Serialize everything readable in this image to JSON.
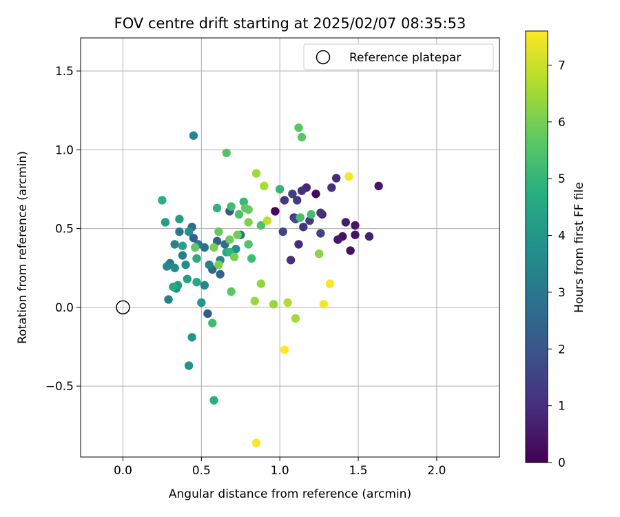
{
  "chart_data": {
    "type": "scatter",
    "title": "FOV centre drift starting at 2025/02/07 08:35:53",
    "xlabel": "Angular distance from reference (arcmin)",
    "ylabel": "Rotation from reference (arcmin)",
    "xlim": [
      -0.27,
      2.4
    ],
    "ylim": [
      -0.95,
      1.71
    ],
    "xticks": [
      0.0,
      0.5,
      1.0,
      1.5,
      2.0
    ],
    "xtick_labels": [
      "0.0",
      "0.5",
      "1.0",
      "1.5",
      "2.0"
    ],
    "yticks": [
      -0.5,
      0.0,
      0.5,
      1.0,
      1.5
    ],
    "ytick_labels": [
      "−0.5",
      "0.0",
      "0.5",
      "1.0",
      "1.5"
    ],
    "grid": true,
    "legend": {
      "placement": "top-right",
      "entries": [
        "Reference platepar"
      ]
    },
    "reference_point": {
      "x": 0.0,
      "y": 0.0,
      "marker": "open-circle",
      "color": "#000000"
    },
    "colorbar": {
      "label": "Hours from first FF file",
      "colormap": "viridis",
      "range": [
        0,
        7.6
      ],
      "ticks": [
        0,
        1,
        2,
        3,
        4,
        5,
        6,
        7
      ],
      "tick_labels": [
        "0",
        "1",
        "2",
        "3",
        "4",
        "5",
        "6",
        "7"
      ]
    },
    "points": [
      {
        "x": 0.97,
        "y": 0.61,
        "c": 0.1
      },
      {
        "x": 1.23,
        "y": 0.72,
        "c": 0.2
      },
      {
        "x": 1.4,
        "y": 0.45,
        "c": 0.3
      },
      {
        "x": 1.45,
        "y": 0.36,
        "c": 0.35
      },
      {
        "x": 1.48,
        "y": 0.46,
        "c": 0.4
      },
      {
        "x": 1.48,
        "y": 0.52,
        "c": 0.45
      },
      {
        "x": 1.37,
        "y": 0.43,
        "c": 0.5
      },
      {
        "x": 1.63,
        "y": 0.77,
        "c": 0.5
      },
      {
        "x": 1.42,
        "y": 0.54,
        "c": 0.6
      },
      {
        "x": 1.57,
        "y": 0.45,
        "c": 0.7
      },
      {
        "x": 1.17,
        "y": 0.76,
        "c": 0.8
      },
      {
        "x": 1.27,
        "y": 0.59,
        "c": 0.8
      },
      {
        "x": 1.36,
        "y": 0.82,
        "c": 0.9
      },
      {
        "x": 1.12,
        "y": 0.4,
        "c": 0.9
      },
      {
        "x": 1.07,
        "y": 0.3,
        "c": 1.0
      },
      {
        "x": 1.14,
        "y": 0.74,
        "c": 1.0
      },
      {
        "x": 1.33,
        "y": 0.76,
        "c": 1.0
      },
      {
        "x": 1.09,
        "y": 0.57,
        "c": 1.1
      },
      {
        "x": 1.15,
        "y": 0.51,
        "c": 1.1
      },
      {
        "x": 1.26,
        "y": 0.6,
        "c": 1.1
      },
      {
        "x": 1.03,
        "y": 0.68,
        "c": 1.2
      },
      {
        "x": 1.11,
        "y": 0.68,
        "c": 1.3
      },
      {
        "x": 1.19,
        "y": 0.55,
        "c": 1.3
      },
      {
        "x": 1.08,
        "y": 0.72,
        "c": 1.4
      },
      {
        "x": 1.26,
        "y": 0.47,
        "c": 1.5
      },
      {
        "x": 1.02,
        "y": 0.48,
        "c": 1.6
      },
      {
        "x": 1.1,
        "y": 0.56,
        "c": 1.7
      },
      {
        "x": 0.68,
        "y": 0.61,
        "c": 2.0
      },
      {
        "x": 0.54,
        "y": -0.04,
        "c": 2.2
      },
      {
        "x": 0.6,
        "y": 0.42,
        "c": 2.3
      },
      {
        "x": 0.45,
        "y": 0.44,
        "c": 2.3
      },
      {
        "x": 0.62,
        "y": 0.21,
        "c": 2.4
      },
      {
        "x": 0.57,
        "y": 0.24,
        "c": 2.5
      },
      {
        "x": 0.44,
        "y": 0.51,
        "c": 2.6
      },
      {
        "x": 0.65,
        "y": 0.4,
        "c": 2.7
      },
      {
        "x": 0.52,
        "y": 0.38,
        "c": 2.8
      },
      {
        "x": 0.75,
        "y": 0.46,
        "c": 2.9
      },
      {
        "x": 0.36,
        "y": 0.48,
        "c": 3.0
      },
      {
        "x": 0.48,
        "y": 0.4,
        "c": 3.0
      },
      {
        "x": 0.3,
        "y": 0.28,
        "c": 3.1
      },
      {
        "x": 0.38,
        "y": 0.33,
        "c": 3.2
      },
      {
        "x": 0.29,
        "y": 0.05,
        "c": 3.3
      },
      {
        "x": 0.55,
        "y": 0.27,
        "c": 3.3
      },
      {
        "x": 0.62,
        "y": 0.3,
        "c": 3.4
      },
      {
        "x": 0.33,
        "y": 0.4,
        "c": 3.4
      },
      {
        "x": 0.52,
        "y": 0.14,
        "c": 3.5
      },
      {
        "x": 0.45,
        "y": 1.09,
        "c": 3.5
      },
      {
        "x": 0.28,
        "y": 0.26,
        "c": 3.6
      },
      {
        "x": 0.34,
        "y": 0.12,
        "c": 3.6
      },
      {
        "x": 0.4,
        "y": 0.27,
        "c": 3.7
      },
      {
        "x": 0.33,
        "y": 0.25,
        "c": 3.7
      },
      {
        "x": 0.42,
        "y": 0.48,
        "c": 3.8
      },
      {
        "x": 0.72,
        "y": 0.37,
        "c": 3.8
      },
      {
        "x": 0.42,
        "y": -0.37,
        "c": 3.9
      },
      {
        "x": 0.44,
        "y": -0.19,
        "c": 4.0
      },
      {
        "x": 0.5,
        "y": 0.03,
        "c": 4.0
      },
      {
        "x": 0.35,
        "y": 0.14,
        "c": 4.1
      },
      {
        "x": 0.27,
        "y": 0.54,
        "c": 4.2
      },
      {
        "x": 0.36,
        "y": 0.56,
        "c": 4.2
      },
      {
        "x": 0.41,
        "y": 0.18,
        "c": 4.3
      },
      {
        "x": 0.38,
        "y": 0.39,
        "c": 4.4
      },
      {
        "x": 0.66,
        "y": 0.35,
        "c": 4.5
      },
      {
        "x": 0.47,
        "y": 0.16,
        "c": 4.5
      },
      {
        "x": 0.32,
        "y": 0.13,
        "c": 4.6
      },
      {
        "x": 0.47,
        "y": 0.31,
        "c": 4.7
      },
      {
        "x": 0.58,
        "y": -0.59,
        "c": 4.8
      },
      {
        "x": 0.25,
        "y": 0.68,
        "c": 4.8
      },
      {
        "x": 0.6,
        "y": 0.63,
        "c": 4.9
      },
      {
        "x": 0.68,
        "y": 0.35,
        "c": 5.0
      },
      {
        "x": 1.0,
        "y": 0.75,
        "c": 5.0
      },
      {
        "x": 0.77,
        "y": 0.67,
        "c": 5.1
      },
      {
        "x": 0.69,
        "y": 0.64,
        "c": 5.2
      },
      {
        "x": 0.82,
        "y": 0.31,
        "c": 5.2
      },
      {
        "x": 0.57,
        "y": -0.1,
        "c": 5.2
      },
      {
        "x": 1.13,
        "y": 0.57,
        "c": 5.3
      },
      {
        "x": 1.2,
        "y": 0.59,
        "c": 5.3
      },
      {
        "x": 0.88,
        "y": 0.52,
        "c": 5.4
      },
      {
        "x": 0.74,
        "y": 0.59,
        "c": 5.4
      },
      {
        "x": 0.8,
        "y": 0.4,
        "c": 5.5
      },
      {
        "x": 0.66,
        "y": 0.98,
        "c": 5.5
      },
      {
        "x": 0.69,
        "y": 0.1,
        "c": 5.6
      },
      {
        "x": 1.12,
        "y": 1.14,
        "c": 5.6
      },
      {
        "x": 1.14,
        "y": 1.08,
        "c": 5.6
      },
      {
        "x": 0.46,
        "y": 0.38,
        "c": 5.7
      },
      {
        "x": 0.78,
        "y": 0.63,
        "c": 5.7
      },
      {
        "x": 0.8,
        "y": 0.62,
        "c": 5.8
      },
      {
        "x": 0.61,
        "y": 0.48,
        "c": 5.8
      },
      {
        "x": 0.73,
        "y": 0.46,
        "c": 5.9
      },
      {
        "x": 0.68,
        "y": 0.43,
        "c": 5.9
      },
      {
        "x": 0.58,
        "y": 0.38,
        "c": 6.0
      },
      {
        "x": 0.71,
        "y": 0.32,
        "c": 6.0
      },
      {
        "x": 0.61,
        "y": 0.27,
        "c": 6.1
      },
      {
        "x": 0.8,
        "y": 0.54,
        "c": 6.1
      },
      {
        "x": 1.25,
        "y": 0.34,
        "c": 6.2
      },
      {
        "x": 0.88,
        "y": 0.15,
        "c": 6.3
      },
      {
        "x": 0.84,
        "y": 0.04,
        "c": 6.4
      },
      {
        "x": 0.96,
        "y": 0.02,
        "c": 6.4
      },
      {
        "x": 1.1,
        "y": -0.07,
        "c": 6.5
      },
      {
        "x": 0.85,
        "y": 0.85,
        "c": 6.5
      },
      {
        "x": 0.9,
        "y": 0.77,
        "c": 6.6
      },
      {
        "x": 1.05,
        "y": 0.03,
        "c": 6.7
      },
      {
        "x": 0.92,
        "y": 0.55,
        "c": 6.9
      },
      {
        "x": 1.44,
        "y": 0.83,
        "c": 7.5
      },
      {
        "x": 1.32,
        "y": 0.15,
        "c": 7.5
      },
      {
        "x": 1.28,
        "y": 0.02,
        "c": 7.5
      },
      {
        "x": 1.03,
        "y": -0.27,
        "c": 7.6
      },
      {
        "x": 0.85,
        "y": -0.86,
        "c": 7.6
      }
    ]
  }
}
